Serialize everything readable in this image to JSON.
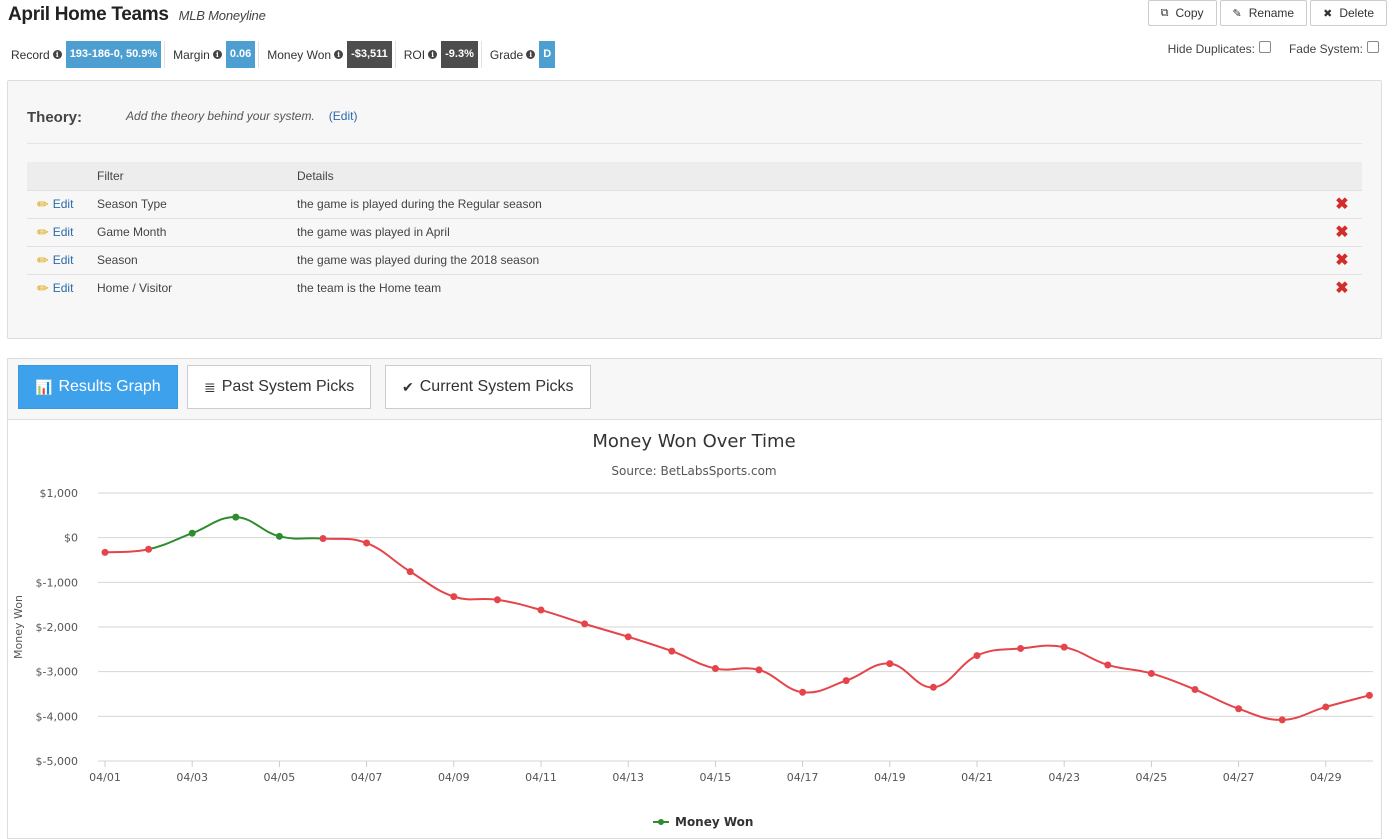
{
  "header": {
    "title": "April Home Teams",
    "subtitle": "MLB Moneyline",
    "actions": {
      "copy": "Copy",
      "rename": "Rename",
      "delete": "Delete"
    }
  },
  "stats": {
    "record_label": "Record",
    "record_value": "193-186-0, 50.9%",
    "margin_label": "Margin",
    "margin_value": "0.06",
    "money_label": "Money Won",
    "money_value": "-$3,511",
    "roi_label": "ROI",
    "roi_value": "-9.3%",
    "grade_label": "Grade",
    "grade_value": "D"
  },
  "toggles": {
    "hide_duplicates": "Hide Duplicates:",
    "fade_system": "Fade System:"
  },
  "theory": {
    "label": "Theory:",
    "text": "Add the theory behind your system.",
    "edit": "(Edit)"
  },
  "filters": {
    "col_filter": "Filter",
    "col_details": "Details",
    "edit_label": "Edit",
    "rows": [
      {
        "filter": "Season Type",
        "details": "the game is played during the Regular season"
      },
      {
        "filter": "Game Month",
        "details": "the game was played in April"
      },
      {
        "filter": "Season",
        "details": "the game was played during the 2018 season"
      },
      {
        "filter": "Home / Visitor",
        "details": "the team is the Home team"
      }
    ]
  },
  "tabs": {
    "results_graph": "Results Graph",
    "past_picks": "Past System Picks",
    "current_picks": "Current System Picks"
  },
  "colors": {
    "positive": "#2e8b2e",
    "negative": "#e5454a",
    "accent": "#3ea1ec"
  },
  "chart_data": {
    "type": "line",
    "title": "Money Won Over Time",
    "subtitle": "Source: BetLabsSports.com",
    "ylabel": "Money Won",
    "xlabel": "",
    "ylim": [
      -5000,
      1000
    ],
    "yticks": [
      1000,
      0,
      -1000,
      -2000,
      -3000,
      -4000,
      -5000
    ],
    "ytick_labels": [
      "$1,000",
      "$0",
      "$-1,000",
      "$-2,000",
      "$-3,000",
      "$-4,000",
      "$-5,000"
    ],
    "x": [
      "04/01",
      "04/02",
      "04/03",
      "04/04",
      "04/05",
      "04/06",
      "04/07",
      "04/08",
      "04/09",
      "04/10",
      "04/11",
      "04/12",
      "04/13",
      "04/14",
      "04/15",
      "04/16",
      "04/17",
      "04/18",
      "04/19",
      "04/20",
      "04/21",
      "04/22",
      "04/23",
      "04/24",
      "04/25",
      "04/26",
      "04/27",
      "04/28",
      "04/29",
      "04/30"
    ],
    "xtick_labels": [
      "04/01",
      "04/03",
      "04/05",
      "04/07",
      "04/09",
      "04/11",
      "04/13",
      "04/15",
      "04/17",
      "04/19",
      "04/21",
      "04/23",
      "04/25",
      "04/27",
      "04/29"
    ],
    "series": [
      {
        "name": "Money Won",
        "values": [
          -330,
          -260,
          100,
          460,
          30,
          -20,
          -120,
          -760,
          -1320,
          -1390,
          -1620,
          -1930,
          -2220,
          -2540,
          -2930,
          -2960,
          -3460,
          -3200,
          -2820,
          -3350,
          -2640,
          -2480,
          -2450,
          -2850,
          -3040,
          -3400,
          -3830,
          -4080,
          -3790,
          -3530
        ]
      }
    ],
    "legend": "bottom-center",
    "grid": true
  }
}
